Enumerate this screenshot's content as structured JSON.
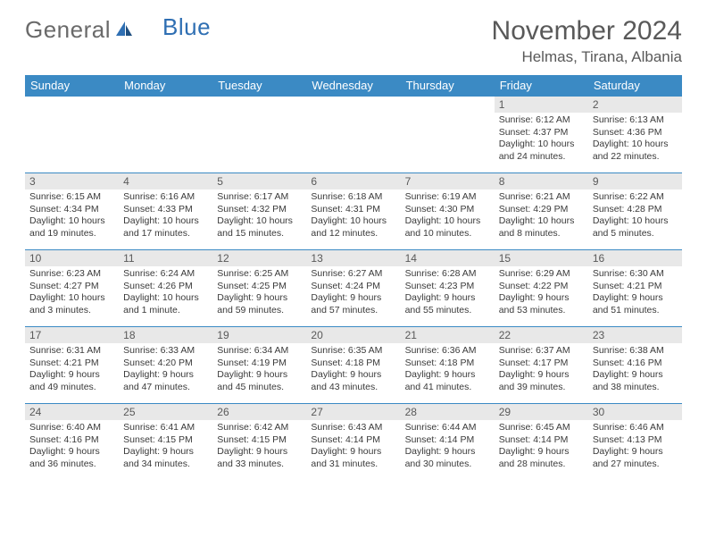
{
  "logo": {
    "general": "General",
    "blue": "Blue"
  },
  "title": "November 2024",
  "location": "Helmas, Tirana, Albania",
  "colors": {
    "header_bg": "#3b8ac4",
    "header_text": "#ffffff",
    "daynum_bg": "#e8e8e8",
    "border": "#3b8ac4",
    "text": "#333333",
    "title_text": "#595959"
  },
  "fonts": {
    "title_size": 30,
    "location_size": 17,
    "dayheader_size": 13,
    "daynum_size": 12,
    "body_size": 10.5
  },
  "day_headers": [
    "Sunday",
    "Monday",
    "Tuesday",
    "Wednesday",
    "Thursday",
    "Friday",
    "Saturday"
  ],
  "weeks": [
    [
      {
        "n": "",
        "sr": "",
        "ss": "",
        "dl": ""
      },
      {
        "n": "",
        "sr": "",
        "ss": "",
        "dl": ""
      },
      {
        "n": "",
        "sr": "",
        "ss": "",
        "dl": ""
      },
      {
        "n": "",
        "sr": "",
        "ss": "",
        "dl": ""
      },
      {
        "n": "",
        "sr": "",
        "ss": "",
        "dl": ""
      },
      {
        "n": "1",
        "sr": "Sunrise: 6:12 AM",
        "ss": "Sunset: 4:37 PM",
        "dl": "Daylight: 10 hours and 24 minutes."
      },
      {
        "n": "2",
        "sr": "Sunrise: 6:13 AM",
        "ss": "Sunset: 4:36 PM",
        "dl": "Daylight: 10 hours and 22 minutes."
      }
    ],
    [
      {
        "n": "3",
        "sr": "Sunrise: 6:15 AM",
        "ss": "Sunset: 4:34 PM",
        "dl": "Daylight: 10 hours and 19 minutes."
      },
      {
        "n": "4",
        "sr": "Sunrise: 6:16 AM",
        "ss": "Sunset: 4:33 PM",
        "dl": "Daylight: 10 hours and 17 minutes."
      },
      {
        "n": "5",
        "sr": "Sunrise: 6:17 AM",
        "ss": "Sunset: 4:32 PM",
        "dl": "Daylight: 10 hours and 15 minutes."
      },
      {
        "n": "6",
        "sr": "Sunrise: 6:18 AM",
        "ss": "Sunset: 4:31 PM",
        "dl": "Daylight: 10 hours and 12 minutes."
      },
      {
        "n": "7",
        "sr": "Sunrise: 6:19 AM",
        "ss": "Sunset: 4:30 PM",
        "dl": "Daylight: 10 hours and 10 minutes."
      },
      {
        "n": "8",
        "sr": "Sunrise: 6:21 AM",
        "ss": "Sunset: 4:29 PM",
        "dl": "Daylight: 10 hours and 8 minutes."
      },
      {
        "n": "9",
        "sr": "Sunrise: 6:22 AM",
        "ss": "Sunset: 4:28 PM",
        "dl": "Daylight: 10 hours and 5 minutes."
      }
    ],
    [
      {
        "n": "10",
        "sr": "Sunrise: 6:23 AM",
        "ss": "Sunset: 4:27 PM",
        "dl": "Daylight: 10 hours and 3 minutes."
      },
      {
        "n": "11",
        "sr": "Sunrise: 6:24 AM",
        "ss": "Sunset: 4:26 PM",
        "dl": "Daylight: 10 hours and 1 minute."
      },
      {
        "n": "12",
        "sr": "Sunrise: 6:25 AM",
        "ss": "Sunset: 4:25 PM",
        "dl": "Daylight: 9 hours and 59 minutes."
      },
      {
        "n": "13",
        "sr": "Sunrise: 6:27 AM",
        "ss": "Sunset: 4:24 PM",
        "dl": "Daylight: 9 hours and 57 minutes."
      },
      {
        "n": "14",
        "sr": "Sunrise: 6:28 AM",
        "ss": "Sunset: 4:23 PM",
        "dl": "Daylight: 9 hours and 55 minutes."
      },
      {
        "n": "15",
        "sr": "Sunrise: 6:29 AM",
        "ss": "Sunset: 4:22 PM",
        "dl": "Daylight: 9 hours and 53 minutes."
      },
      {
        "n": "16",
        "sr": "Sunrise: 6:30 AM",
        "ss": "Sunset: 4:21 PM",
        "dl": "Daylight: 9 hours and 51 minutes."
      }
    ],
    [
      {
        "n": "17",
        "sr": "Sunrise: 6:31 AM",
        "ss": "Sunset: 4:21 PM",
        "dl": "Daylight: 9 hours and 49 minutes."
      },
      {
        "n": "18",
        "sr": "Sunrise: 6:33 AM",
        "ss": "Sunset: 4:20 PM",
        "dl": "Daylight: 9 hours and 47 minutes."
      },
      {
        "n": "19",
        "sr": "Sunrise: 6:34 AM",
        "ss": "Sunset: 4:19 PM",
        "dl": "Daylight: 9 hours and 45 minutes."
      },
      {
        "n": "20",
        "sr": "Sunrise: 6:35 AM",
        "ss": "Sunset: 4:18 PM",
        "dl": "Daylight: 9 hours and 43 minutes."
      },
      {
        "n": "21",
        "sr": "Sunrise: 6:36 AM",
        "ss": "Sunset: 4:18 PM",
        "dl": "Daylight: 9 hours and 41 minutes."
      },
      {
        "n": "22",
        "sr": "Sunrise: 6:37 AM",
        "ss": "Sunset: 4:17 PM",
        "dl": "Daylight: 9 hours and 39 minutes."
      },
      {
        "n": "23",
        "sr": "Sunrise: 6:38 AM",
        "ss": "Sunset: 4:16 PM",
        "dl": "Daylight: 9 hours and 38 minutes."
      }
    ],
    [
      {
        "n": "24",
        "sr": "Sunrise: 6:40 AM",
        "ss": "Sunset: 4:16 PM",
        "dl": "Daylight: 9 hours and 36 minutes."
      },
      {
        "n": "25",
        "sr": "Sunrise: 6:41 AM",
        "ss": "Sunset: 4:15 PM",
        "dl": "Daylight: 9 hours and 34 minutes."
      },
      {
        "n": "26",
        "sr": "Sunrise: 6:42 AM",
        "ss": "Sunset: 4:15 PM",
        "dl": "Daylight: 9 hours and 33 minutes."
      },
      {
        "n": "27",
        "sr": "Sunrise: 6:43 AM",
        "ss": "Sunset: 4:14 PM",
        "dl": "Daylight: 9 hours and 31 minutes."
      },
      {
        "n": "28",
        "sr": "Sunrise: 6:44 AM",
        "ss": "Sunset: 4:14 PM",
        "dl": "Daylight: 9 hours and 30 minutes."
      },
      {
        "n": "29",
        "sr": "Sunrise: 6:45 AM",
        "ss": "Sunset: 4:14 PM",
        "dl": "Daylight: 9 hours and 28 minutes."
      },
      {
        "n": "30",
        "sr": "Sunrise: 6:46 AM",
        "ss": "Sunset: 4:13 PM",
        "dl": "Daylight: 9 hours and 27 minutes."
      }
    ]
  ]
}
